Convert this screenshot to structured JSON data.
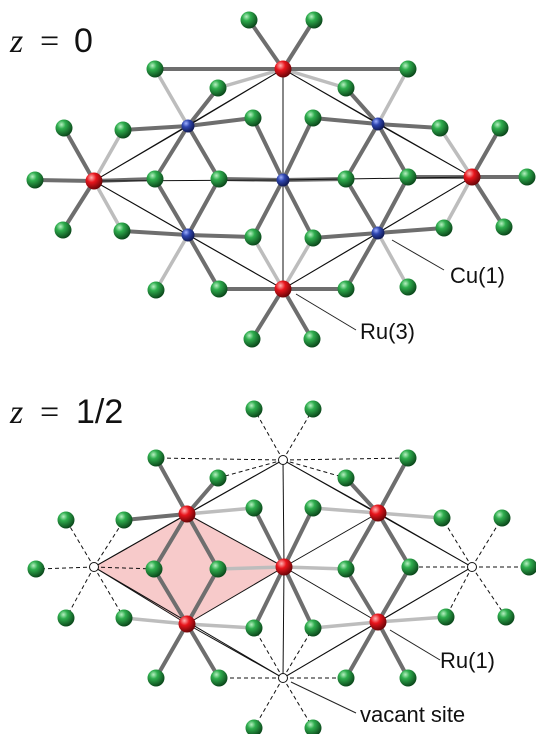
{
  "panels": [
    {
      "id": "top",
      "heading": {
        "variable": "z",
        "equals": "=",
        "value": "0"
      },
      "labels": {
        "cu": "Cu(1)",
        "ru": "Ru(3)"
      }
    },
    {
      "id": "bottom",
      "heading": {
        "variable": "z",
        "equals": "=",
        "value": "1/2"
      },
      "labels": {
        "ru": "Ru(1)",
        "vacant": "vacant site"
      }
    }
  ],
  "colors": {
    "green_atom": "#1f8a3a",
    "red_atom": "#e0141b",
    "blue_atom": "#2a3e9a",
    "vacant_atom": "#ffffff",
    "bond_dark": "#6e6e6e",
    "bond_light": "#bdbdbd",
    "triangle_fill": "#f4b8b8"
  }
}
